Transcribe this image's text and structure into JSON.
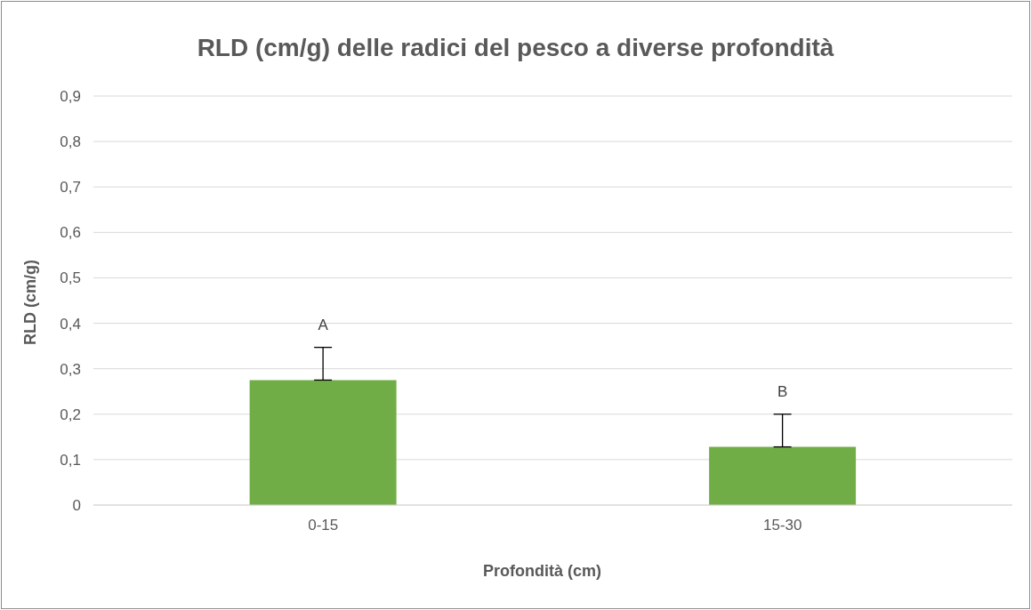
{
  "chart_data": {
    "type": "bar",
    "title": "RLD (cm/g) delle radici del pesco a diverse profondità",
    "xlabel": "Profondità (cm)",
    "ylabel": "RLD (cm/g)",
    "categories": [
      "0-15",
      "15-30"
    ],
    "values": [
      0.275,
      0.128
    ],
    "errors": [
      [
        0.275,
        0.347
      ],
      [
        0.128,
        0.2
      ]
    ],
    "color": "#70ad47",
    "ylim": [
      0,
      0.9
    ],
    "yticks": [
      0,
      {
        "value": 0.1,
        "label": "0,1"
      },
      {
        "value": 0.2,
        "label": "0,2"
      },
      {
        "value": 0.3,
        "label": "0,3"
      },
      {
        "value": 0.4,
        "label": "0,4"
      },
      {
        "value": 0.5,
        "label": "0,5"
      },
      {
        "value": 0.6,
        "label": "0,6"
      },
      {
        "value": 0.7,
        "label": "0,7"
      },
      {
        "value": 0.8,
        "label": "0,8"
      },
      {
        "value": 0.9,
        "label": "0,9"
      }
    ],
    "grid": "y",
    "annotations": [
      {
        "text": "A",
        "x": "0-15",
        "y": 0.347
      },
      {
        "text": "B",
        "x": "15-30",
        "y": 0.2
      }
    ]
  }
}
